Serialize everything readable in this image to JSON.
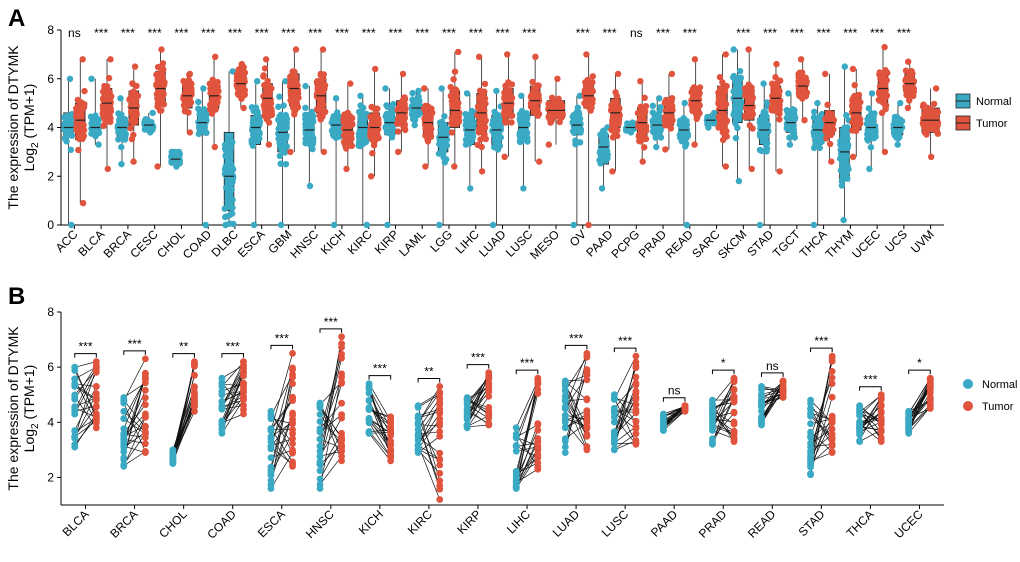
{
  "colors": {
    "normal": "#3aa9c4",
    "tumor": "#e0533d",
    "axis": "#000000"
  },
  "chart_data": [
    {
      "panel_label": "A",
      "type": "box",
      "title": "",
      "ylabel_line1": "The expression of DTYMK",
      "ylabel_line2_prefix": "Log",
      "ylabel_line2_sub": "2",
      "ylabel_line2_suffix": "(TPM+1)",
      "ylim": [
        0,
        8
      ],
      "yticks": [
        0,
        2,
        4,
        6,
        8
      ],
      "legend": {
        "title": "",
        "entries": [
          "Normal",
          "Tumor"
        ],
        "position": "right"
      },
      "categories": [
        "ACC",
        "BLCA",
        "BRCA",
        "CESC",
        "CHOL",
        "COAD",
        "DLBC",
        "ESCA",
        "GBM",
        "HNSC",
        "KICH",
        "KIRC",
        "KIRP",
        "LAML",
        "LGG",
        "LIHC",
        "LUAD",
        "LUSC",
        "MESO",
        "OV",
        "PAAD",
        "PCPG",
        "PRAD",
        "READ",
        "SARC",
        "SKCM",
        "STAD",
        "TGCT",
        "THCA",
        "THYM",
        "UCEC",
        "UCS",
        "UVM"
      ],
      "significance": [
        "ns",
        "***",
        "***",
        "***",
        "***",
        "***",
        "***",
        "***",
        "***",
        "***",
        "***",
        "***",
        "***",
        "***",
        "***",
        "***",
        "***",
        "***",
        "",
        "***",
        "***",
        "ns",
        "***",
        "***",
        "",
        "***",
        "***",
        "***",
        "***",
        "***",
        "***",
        "***",
        ""
      ],
      "series": [
        {
          "name": "Normal",
          "values": [
            {
              "med": 4.0,
              "q1": 3.6,
              "q3": 4.6,
              "min": 0.0,
              "max": 6.0
            },
            {
              "med": 4.0,
              "q1": 3.7,
              "q3": 4.3,
              "min": 3.3,
              "max": 6.0
            },
            {
              "med": 4.0,
              "q1": 3.6,
              "q3": 4.4,
              "min": 2.5,
              "max": 5.2
            },
            {
              "med": 4.1,
              "q1": 3.9,
              "q3": 4.3,
              "min": 3.8,
              "max": 4.6
            },
            {
              "med": 2.7,
              "q1": 2.5,
              "q3": 2.9,
              "min": 2.4,
              "max": 3.0
            },
            {
              "med": 4.2,
              "q1": 3.7,
              "q3": 4.6,
              "min": 0.0,
              "max": 5.6
            },
            {
              "med": 2.0,
              "q1": 0.6,
              "q3": 3.8,
              "min": 0.0,
              "max": 6.3
            },
            {
              "med": 4.0,
              "q1": 3.3,
              "q3": 4.5,
              "min": 0.0,
              "max": 5.9
            },
            {
              "med": 3.8,
              "q1": 3.0,
              "q3": 4.5,
              "min": 0.0,
              "max": 5.9
            },
            {
              "med": 3.9,
              "q1": 3.3,
              "q3": 4.5,
              "min": 1.6,
              "max": 5.7
            },
            {
              "med": 4.1,
              "q1": 3.7,
              "q3": 4.5,
              "min": 0.0,
              "max": 5.2
            },
            {
              "med": 4.0,
              "q1": 3.4,
              "q3": 4.6,
              "min": 0.0,
              "max": 5.3
            },
            {
              "med": 4.2,
              "q1": 3.7,
              "q3": 4.6,
              "min": 0.0,
              "max": 5.6
            },
            {
              "med": 4.8,
              "q1": 4.5,
              "q3": 5.1,
              "min": 4.1,
              "max": 5.5
            },
            {
              "med": 3.6,
              "q1": 3.0,
              "q3": 4.2,
              "min": 0.0,
              "max": 5.6
            },
            {
              "med": 3.9,
              "q1": 3.3,
              "q3": 4.5,
              "min": 1.5,
              "max": 5.4
            },
            {
              "med": 3.9,
              "q1": 3.3,
              "q3": 4.5,
              "min": 0.0,
              "max": 5.5
            },
            {
              "med": 4.0,
              "q1": 3.5,
              "q3": 4.5,
              "min": 1.5,
              "max": 5.3
            },
            null,
            {
              "med": 4.1,
              "q1": 3.7,
              "q3": 4.6,
              "min": 0.0,
              "max": 5.3
            },
            {
              "med": 3.2,
              "q1": 2.5,
              "q3": 3.7,
              "min": 1.5,
              "max": 4.0
            },
            {
              "med": 4.0,
              "q1": 3.9,
              "q3": 4.1,
              "min": 3.8,
              "max": 4.2
            },
            {
              "med": 4.1,
              "q1": 3.7,
              "q3": 4.5,
              "min": 3.2,
              "max": 5.2
            },
            {
              "med": 3.9,
              "q1": 3.5,
              "q3": 4.3,
              "min": 0.0,
              "max": 5.0
            },
            {
              "med": 4.3,
              "q1": 4.2,
              "q3": 4.4,
              "min": 4.0,
              "max": 4.6
            },
            {
              "med": 5.2,
              "q1": 4.2,
              "q3": 6.0,
              "min": 1.8,
              "max": 7.2
            },
            {
              "med": 3.9,
              "q1": 3.3,
              "q3": 4.5,
              "min": 0.0,
              "max": 5.8
            },
            {
              "med": 4.2,
              "q1": 3.8,
              "q3": 4.6,
              "min": 3.3,
              "max": 5.4
            },
            {
              "med": 3.9,
              "q1": 3.3,
              "q3": 4.3,
              "min": 0.0,
              "max": 5.0
            },
            {
              "med": 3.0,
              "q1": 1.8,
              "q3": 4.0,
              "min": 0.2,
              "max": 6.5
            },
            {
              "med": 4.0,
              "q1": 3.5,
              "q3": 4.5,
              "min": 2.3,
              "max": 5.4
            },
            {
              "med": 4.0,
              "q1": 3.7,
              "q3": 4.3,
              "min": 3.3,
              "max": 5.0
            },
            null
          ]
        },
        {
          "name": "Tumor",
          "values": [
            {
              "med": 4.3,
              "q1": 3.5,
              "q3": 5.0,
              "min": 0.9,
              "max": 6.8
            },
            {
              "med": 5.0,
              "q1": 4.4,
              "q3": 5.6,
              "min": 2.3,
              "max": 6.8
            },
            {
              "med": 4.8,
              "q1": 4.1,
              "q3": 5.5,
              "min": 2.6,
              "max": 6.5
            },
            {
              "med": 5.6,
              "q1": 4.9,
              "q3": 6.3,
              "min": 2.4,
              "max": 7.2
            },
            {
              "med": 5.3,
              "q1": 4.8,
              "q3": 5.8,
              "min": 3.8,
              "max": 6.2
            },
            {
              "med": 5.3,
              "q1": 4.8,
              "q3": 5.8,
              "min": 3.2,
              "max": 6.9
            },
            {
              "med": 5.8,
              "q1": 5.3,
              "q3": 6.2,
              "min": 4.8,
              "max": 6.6
            },
            {
              "med": 5.2,
              "q1": 4.6,
              "q3": 5.8,
              "min": 3.3,
              "max": 6.8
            },
            {
              "med": 5.6,
              "q1": 4.9,
              "q3": 6.2,
              "min": 3.0,
              "max": 7.2
            },
            {
              "med": 5.3,
              "q1": 4.6,
              "q3": 6.0,
              "min": 3.0,
              "max": 7.2
            },
            {
              "med": 3.9,
              "q1": 3.2,
              "q3": 4.4,
              "min": 2.3,
              "max": 5.8
            },
            {
              "med": 4.0,
              "q1": 3.5,
              "q3": 4.6,
              "min": 2.0,
              "max": 6.4
            },
            {
              "med": 4.6,
              "q1": 4.1,
              "q3": 5.1,
              "min": 3.0,
              "max": 6.2
            },
            {
              "med": 4.2,
              "q1": 3.6,
              "q3": 4.7,
              "min": 2.4,
              "max": 5.6
            },
            {
              "med": 4.7,
              "q1": 4.0,
              "q3": 5.5,
              "min": 2.4,
              "max": 7.1
            },
            {
              "med": 4.6,
              "q1": 3.8,
              "q3": 5.4,
              "min": 2.2,
              "max": 6.9
            },
            {
              "med": 5.0,
              "q1": 4.4,
              "q3": 5.6,
              "min": 2.8,
              "max": 7.0
            },
            {
              "med": 5.1,
              "q1": 4.5,
              "q3": 5.7,
              "min": 2.6,
              "max": 6.9
            },
            {
              "med": 4.7,
              "q1": 4.4,
              "q3": 5.1,
              "min": 3.3,
              "max": 6.0
            },
            {
              "med": 5.3,
              "q1": 4.8,
              "q3": 5.8,
              "min": 0.0,
              "max": 7.0
            },
            {
              "med": 4.6,
              "q1": 4.0,
              "q3": 5.2,
              "min": 2.2,
              "max": 6.2
            },
            {
              "med": 4.2,
              "q1": 3.6,
              "q3": 4.8,
              "min": 2.6,
              "max": 5.9
            },
            {
              "med": 4.6,
              "q1": 4.1,
              "q3": 5.1,
              "min": 3.1,
              "max": 6.2
            },
            {
              "med": 5.1,
              "q1": 4.6,
              "q3": 5.6,
              "min": 3.3,
              "max": 6.8
            },
            {
              "med": 4.7,
              "q1": 3.9,
              "q3": 5.7,
              "min": 2.4,
              "max": 7.0
            },
            {
              "med": 4.9,
              "q1": 4.3,
              "q3": 5.5,
              "min": 2.3,
              "max": 7.2
            },
            {
              "med": 5.2,
              "q1": 4.6,
              "q3": 5.7,
              "min": 2.2,
              "max": 6.6
            },
            {
              "med": 5.7,
              "q1": 5.2,
              "q3": 6.1,
              "min": 4.3,
              "max": 6.8
            },
            {
              "med": 4.2,
              "q1": 3.7,
              "q3": 4.7,
              "min": 2.6,
              "max": 6.2
            },
            {
              "med": 4.6,
              "q1": 3.9,
              "q3": 5.3,
              "min": 2.8,
              "max": 6.4
            },
            {
              "med": 5.6,
              "q1": 5.0,
              "q3": 6.2,
              "min": 3.0,
              "max": 7.3
            },
            {
              "med": 5.8,
              "q1": 5.4,
              "q3": 6.2,
              "min": 4.8,
              "max": 6.7
            },
            {
              "med": 4.3,
              "q1": 3.8,
              "q3": 4.8,
              "min": 2.8,
              "max": 5.6
            }
          ]
        }
      ]
    },
    {
      "panel_label": "B",
      "type": "paired-scatter",
      "title": "",
      "ylabel_line1": "The expression of DTYMK",
      "ylabel_line2_prefix": "Log",
      "ylabel_line2_sub": "2",
      "ylabel_line2_suffix": "(TPM+1)",
      "ylim": [
        1,
        8
      ],
      "yticks": [
        2,
        4,
        6,
        8
      ],
      "legend": {
        "title": "",
        "entries": [
          "Normal",
          "Tumor"
        ],
        "position": "right"
      },
      "categories": [
        "BLCA",
        "BRCA",
        "CHOL",
        "COAD",
        "ESCA",
        "HNSC",
        "KICH",
        "KIRC",
        "KIRP",
        "LIHC",
        "LUAD",
        "LUSC",
        "PAAD",
        "PRAD",
        "READ",
        "STAD",
        "THCA",
        "UCEC"
      ],
      "significance": [
        "***",
        "***",
        "**",
        "***",
        "***",
        "***",
        "***",
        "**",
        "***",
        "***",
        "***",
        "***",
        "ns",
        "*",
        "ns",
        "***",
        "***",
        "*"
      ],
      "series": [
        {
          "name": "Normal",
          "ranges": [
            [
              3.1,
              6.0
            ],
            [
              2.4,
              4.9
            ],
            [
              2.5,
              3.0
            ],
            [
              3.6,
              5.6
            ],
            [
              1.6,
              4.4
            ],
            [
              1.6,
              4.7
            ],
            [
              3.6,
              5.4
            ],
            [
              2.9,
              4.6
            ],
            [
              3.8,
              4.9
            ],
            [
              1.6,
              3.8
            ],
            [
              2.9,
              5.5
            ],
            [
              3.0,
              5.0
            ],
            [
              3.7,
              4.3
            ],
            [
              3.2,
              4.8
            ],
            [
              3.9,
              5.3
            ],
            [
              2.1,
              4.8
            ],
            [
              3.3,
              4.6
            ],
            [
              3.6,
              4.4
            ]
          ]
        },
        {
          "name": "Tumor",
          "ranges": [
            [
              3.8,
              6.2
            ],
            [
              2.9,
              6.3
            ],
            [
              4.4,
              6.2
            ],
            [
              4.3,
              6.2
            ],
            [
              2.4,
              6.5
            ],
            [
              2.6,
              7.1
            ],
            [
              2.6,
              4.2
            ],
            [
              1.2,
              5.3
            ],
            [
              3.9,
              5.8
            ],
            [
              2.3,
              5.6
            ],
            [
              3.0,
              6.5
            ],
            [
              3.2,
              6.4
            ],
            [
              4.4,
              4.6
            ],
            [
              3.3,
              5.6
            ],
            [
              4.9,
              5.5
            ],
            [
              2.9,
              6.4
            ],
            [
              3.3,
              5.0
            ],
            [
              4.5,
              5.6
            ]
          ]
        }
      ]
    }
  ]
}
